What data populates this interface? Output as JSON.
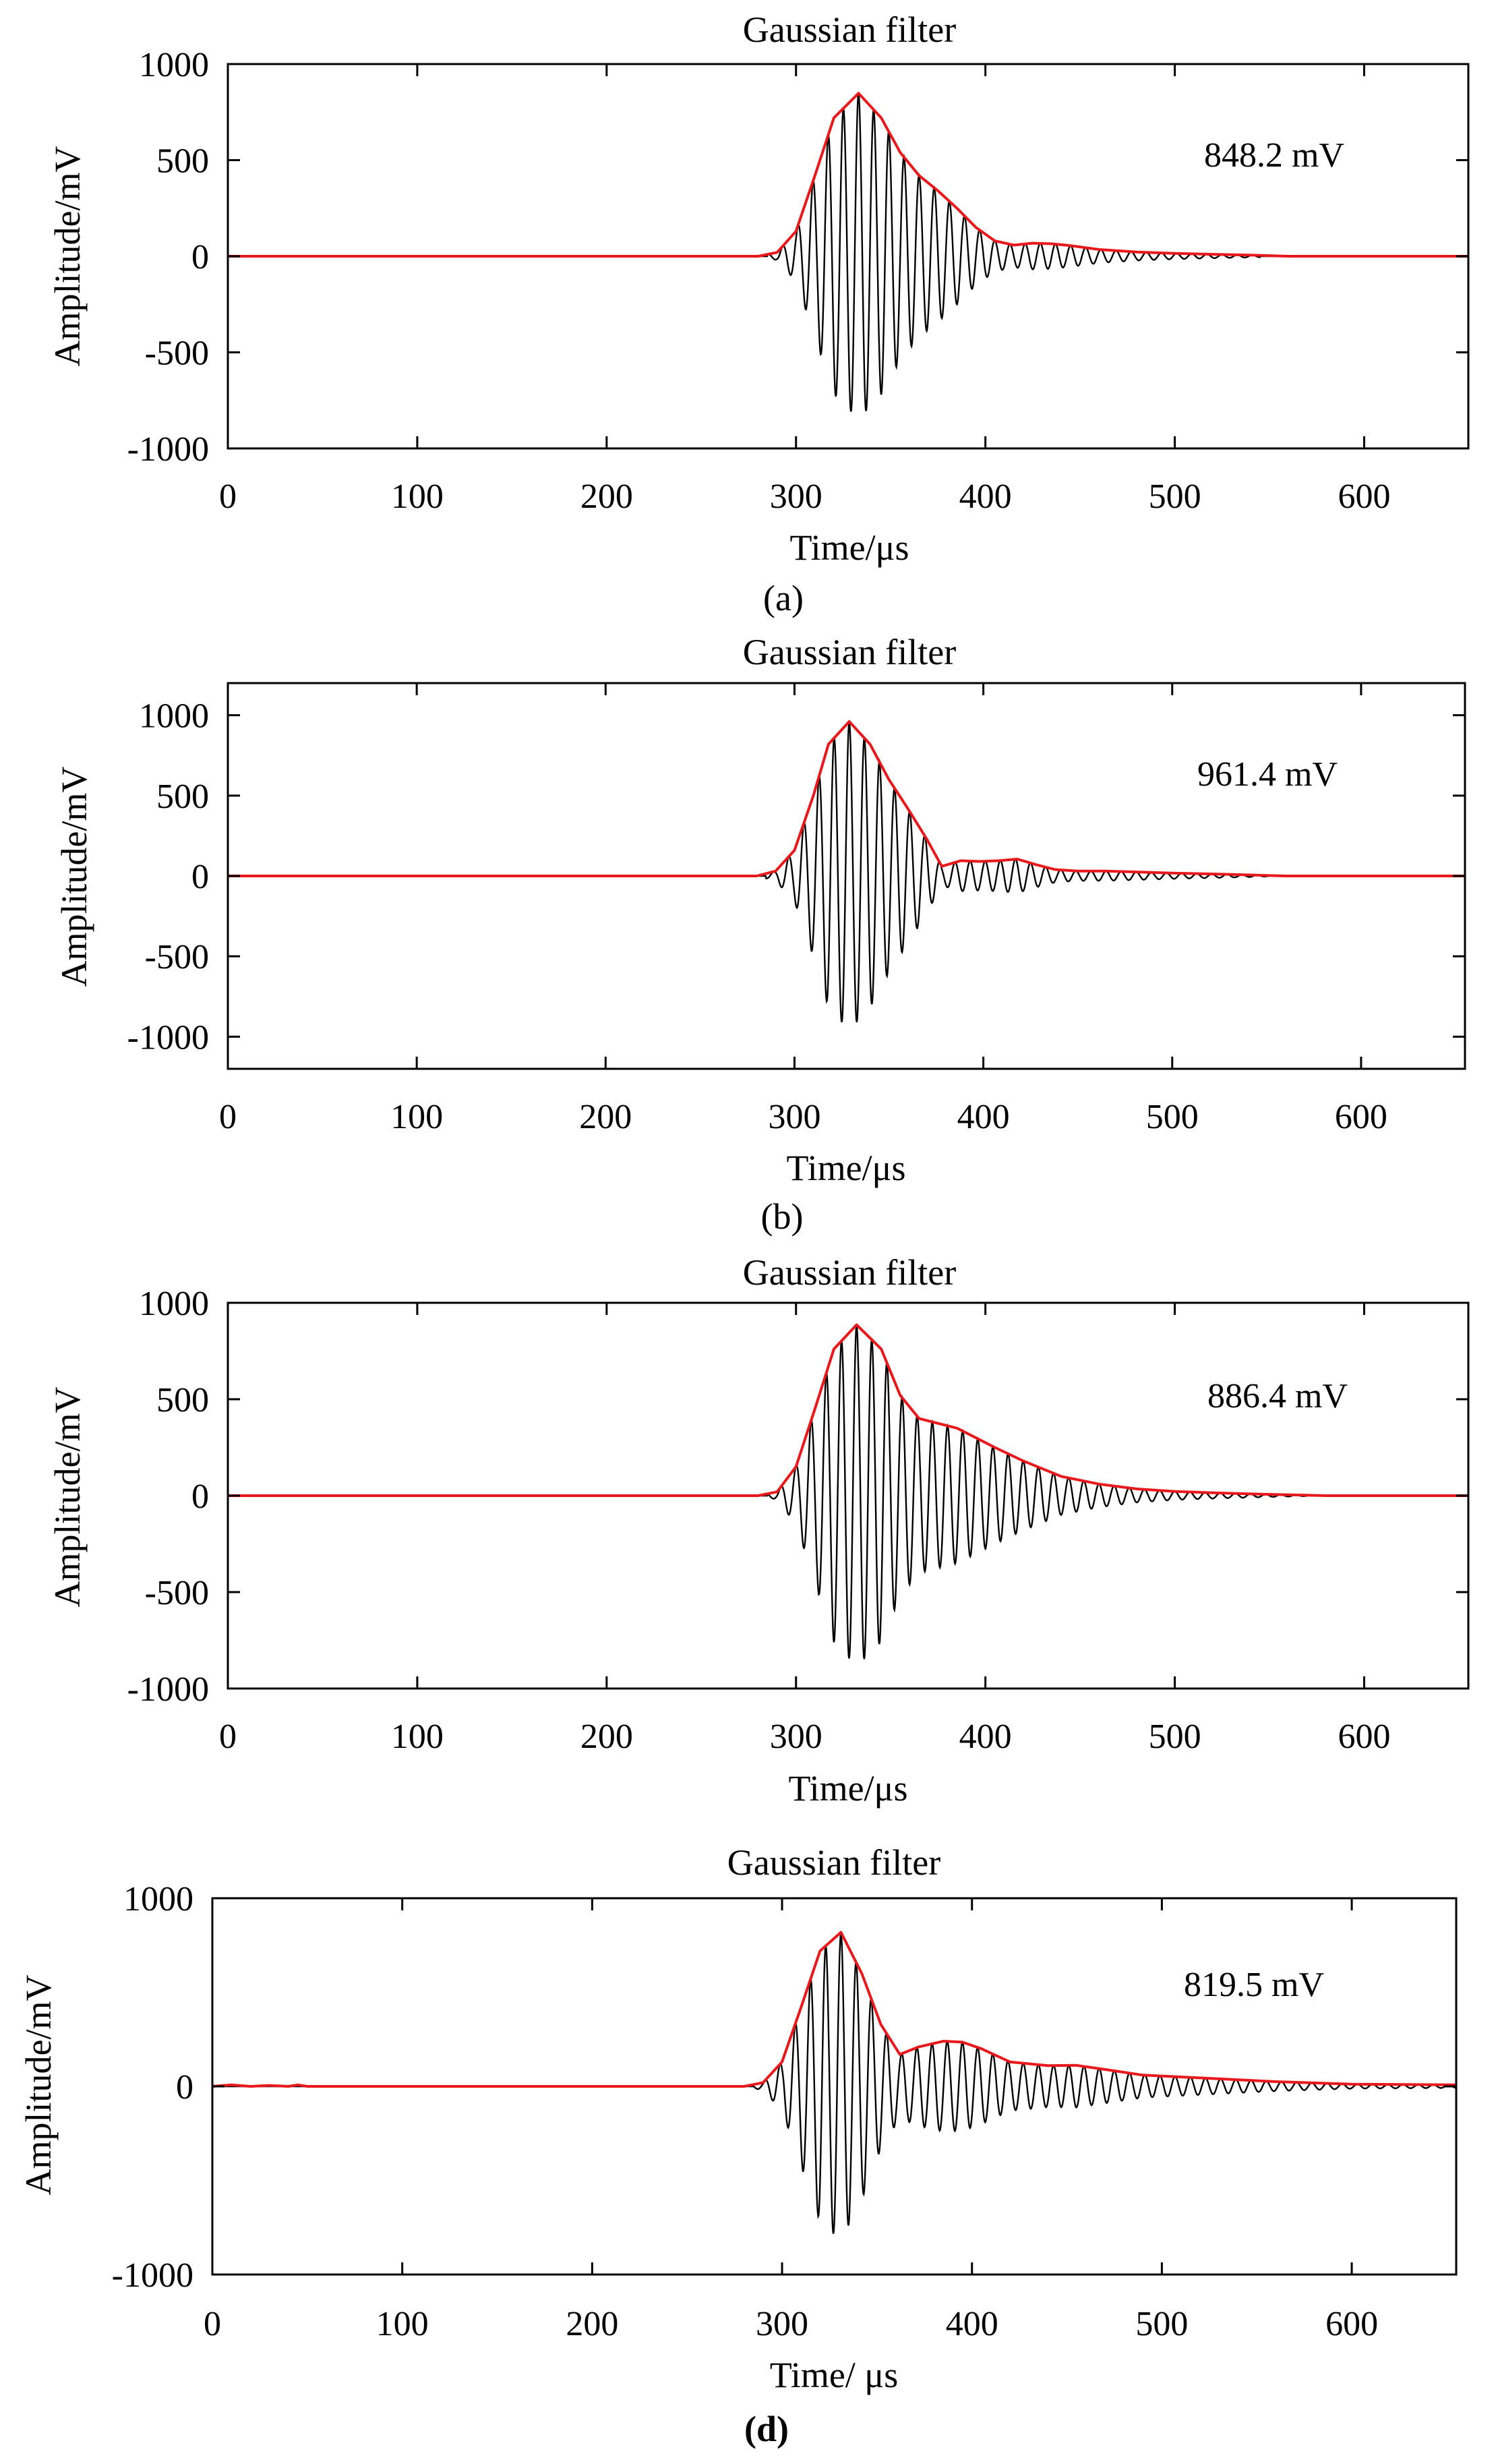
{
  "figure_title": "Gaussian filter — ultrasonic signal amplitude panels",
  "colors": {
    "signal": "#000000",
    "envelope": "#e8191c",
    "axis": "#000000",
    "background": "#ffffff"
  },
  "chart_data": [
    {
      "type": "line",
      "panel_label": "(a)",
      "title": "Gaussian filter",
      "xlabel": "Time/μs",
      "ylabel": "Amplitude/mV",
      "xlim": [
        0,
        655
      ],
      "ylim": [
        -1000,
        1000
      ],
      "xticks": [
        "0",
        "100",
        "200",
        "300",
        "400",
        "500",
        "600"
      ],
      "xtick_values": [
        0,
        100,
        200,
        300,
        400,
        500,
        600
      ],
      "yticks": [
        "1000",
        "500",
        "0",
        "-500",
        "-1000"
      ],
      "ytick_values": [
        1000,
        500,
        0,
        -500,
        -1000
      ],
      "annotation": "848.2 mV",
      "peak_amplitude_mV": 848.2,
      "peak_time_us": 333,
      "signal_start_us": 285,
      "signal_end_us": 545,
      "series": [
        {
          "name": "Filtered signal",
          "color": "black",
          "carrier_frequency_MHz": 0.125,
          "description": "oscillating waveform inside envelope"
        },
        {
          "name": "Envelope",
          "color": "red",
          "x": [
            0,
            280,
            290,
            300,
            310,
            320,
            333,
            345,
            355,
            365,
            375,
            385,
            395,
            405,
            415,
            425,
            435,
            445,
            460,
            480,
            500,
            520,
            545,
            560,
            655
          ],
          "y": [
            0,
            0,
            20,
            130,
            420,
            720,
            848,
            720,
            540,
            420,
            340,
            250,
            150,
            80,
            58,
            68,
            65,
            55,
            35,
            22,
            15,
            10,
            5,
            0,
            0
          ]
        }
      ]
    },
    {
      "type": "line",
      "panel_label": "(b)",
      "title": "Gaussian filter",
      "xlabel": "Time/μs",
      "ylabel": "Amplitude/mV",
      "xlim": [
        0,
        655
      ],
      "ylim": [
        -1200,
        1200
      ],
      "xticks": [
        "0",
        "100",
        "200",
        "300",
        "400",
        "500",
        "600"
      ],
      "xtick_values": [
        0,
        100,
        200,
        300,
        400,
        500,
        600
      ],
      "yticks": [
        "1000",
        "500",
        "0",
        "-500",
        "-1000"
      ],
      "ytick_values": [
        1000,
        500,
        0,
        -500,
        -1000
      ],
      "annotation": "961.4 mV",
      "peak_amplitude_mV": 961.4,
      "peak_time_us": 329,
      "signal_start_us": 285,
      "signal_end_us": 560,
      "series": [
        {
          "name": "Filtered signal",
          "color": "black",
          "carrier_frequency_MHz": 0.125,
          "description": "oscillating waveform inside envelope"
        },
        {
          "name": "Envelope",
          "color": "red",
          "x": [
            0,
            280,
            290,
            300,
            310,
            318,
            329,
            340,
            350,
            360,
            370,
            378,
            388,
            398,
            408,
            418,
            428,
            438,
            450,
            465,
            480,
            500,
            530,
            560,
            655
          ],
          "y": [
            0,
            0,
            30,
            160,
            500,
            820,
            961,
            820,
            600,
            420,
            230,
            60,
            95,
            90,
            95,
            105,
            70,
            40,
            30,
            30,
            25,
            18,
            10,
            0,
            0
          ]
        }
      ]
    },
    {
      "type": "line",
      "panel_label": "",
      "title": "Gaussian filter",
      "xlabel": "Time/μs",
      "ylabel": "Amplitude/mV",
      "xlim": [
        0,
        655
      ],
      "ylim": [
        -1000,
        1000
      ],
      "xticks": [
        "0",
        "100",
        "200",
        "300",
        "400",
        "500",
        "600"
      ],
      "xtick_values": [
        0,
        100,
        200,
        300,
        400,
        500,
        600
      ],
      "yticks": [
        "1000",
        "500",
        "0",
        "-500",
        "-1000"
      ],
      "ytick_values": [
        1000,
        500,
        0,
        -500,
        -1000
      ],
      "annotation": "886.4 mV",
      "peak_amplitude_mV": 886.4,
      "peak_time_us": 332,
      "signal_start_us": 285,
      "signal_end_us": 580,
      "series": [
        {
          "name": "Filtered signal",
          "color": "black",
          "carrier_frequency_MHz": 0.125,
          "description": "oscillating waveform inside envelope"
        },
        {
          "name": "Envelope",
          "color": "red",
          "x": [
            0,
            280,
            290,
            300,
            310,
            320,
            332,
            345,
            355,
            365,
            375,
            385,
            395,
            405,
            420,
            440,
            460,
            480,
            500,
            520,
            545,
            580,
            655
          ],
          "y": [
            0,
            0,
            20,
            150,
            450,
            760,
            886,
            760,
            520,
            400,
            375,
            350,
            300,
            250,
            180,
            100,
            60,
            35,
            22,
            15,
            8,
            0,
            0
          ]
        }
      ]
    },
    {
      "type": "line",
      "panel_label": "(d)",
      "title": "Gaussian filter",
      "xlabel": "Time/ μs",
      "ylabel": "Amplitude/mV",
      "xlim": [
        0,
        655
      ],
      "ylim": [
        -1000,
        1000
      ],
      "xticks": [
        "0",
        "100",
        "200",
        "300",
        "400",
        "500",
        "600"
      ],
      "xtick_values": [
        0,
        100,
        200,
        300,
        400,
        500,
        600
      ],
      "yticks": [
        "1000",
        "0",
        "-1000"
      ],
      "ytick_values": [
        1000,
        0,
        -1000
      ],
      "annotation": "819.5 mV",
      "peak_amplitude_mV": 819.5,
      "peak_time_us": 331,
      "signal_start_us": 285,
      "signal_end_us": 655,
      "series": [
        {
          "name": "Filtered signal",
          "color": "black",
          "carrier_frequency_MHz": 0.125,
          "description": "oscillating waveform inside envelope"
        },
        {
          "name": "Envelope",
          "color": "red",
          "x": [
            0,
            10,
            20,
            30,
            40,
            45,
            50,
            280,
            290,
            300,
            310,
            320,
            331,
            342,
            352,
            362,
            372,
            385,
            395,
            405,
            420,
            440,
            455,
            470,
            490,
            520,
            560,
            600,
            655
          ],
          "y": [
            0,
            8,
            0,
            5,
            0,
            8,
            0,
            0,
            20,
            130,
            420,
            720,
            819,
            600,
            330,
            170,
            210,
            240,
            235,
            200,
            130,
            110,
            112,
            90,
            60,
            45,
            25,
            12,
            8
          ]
        }
      ]
    }
  ]
}
